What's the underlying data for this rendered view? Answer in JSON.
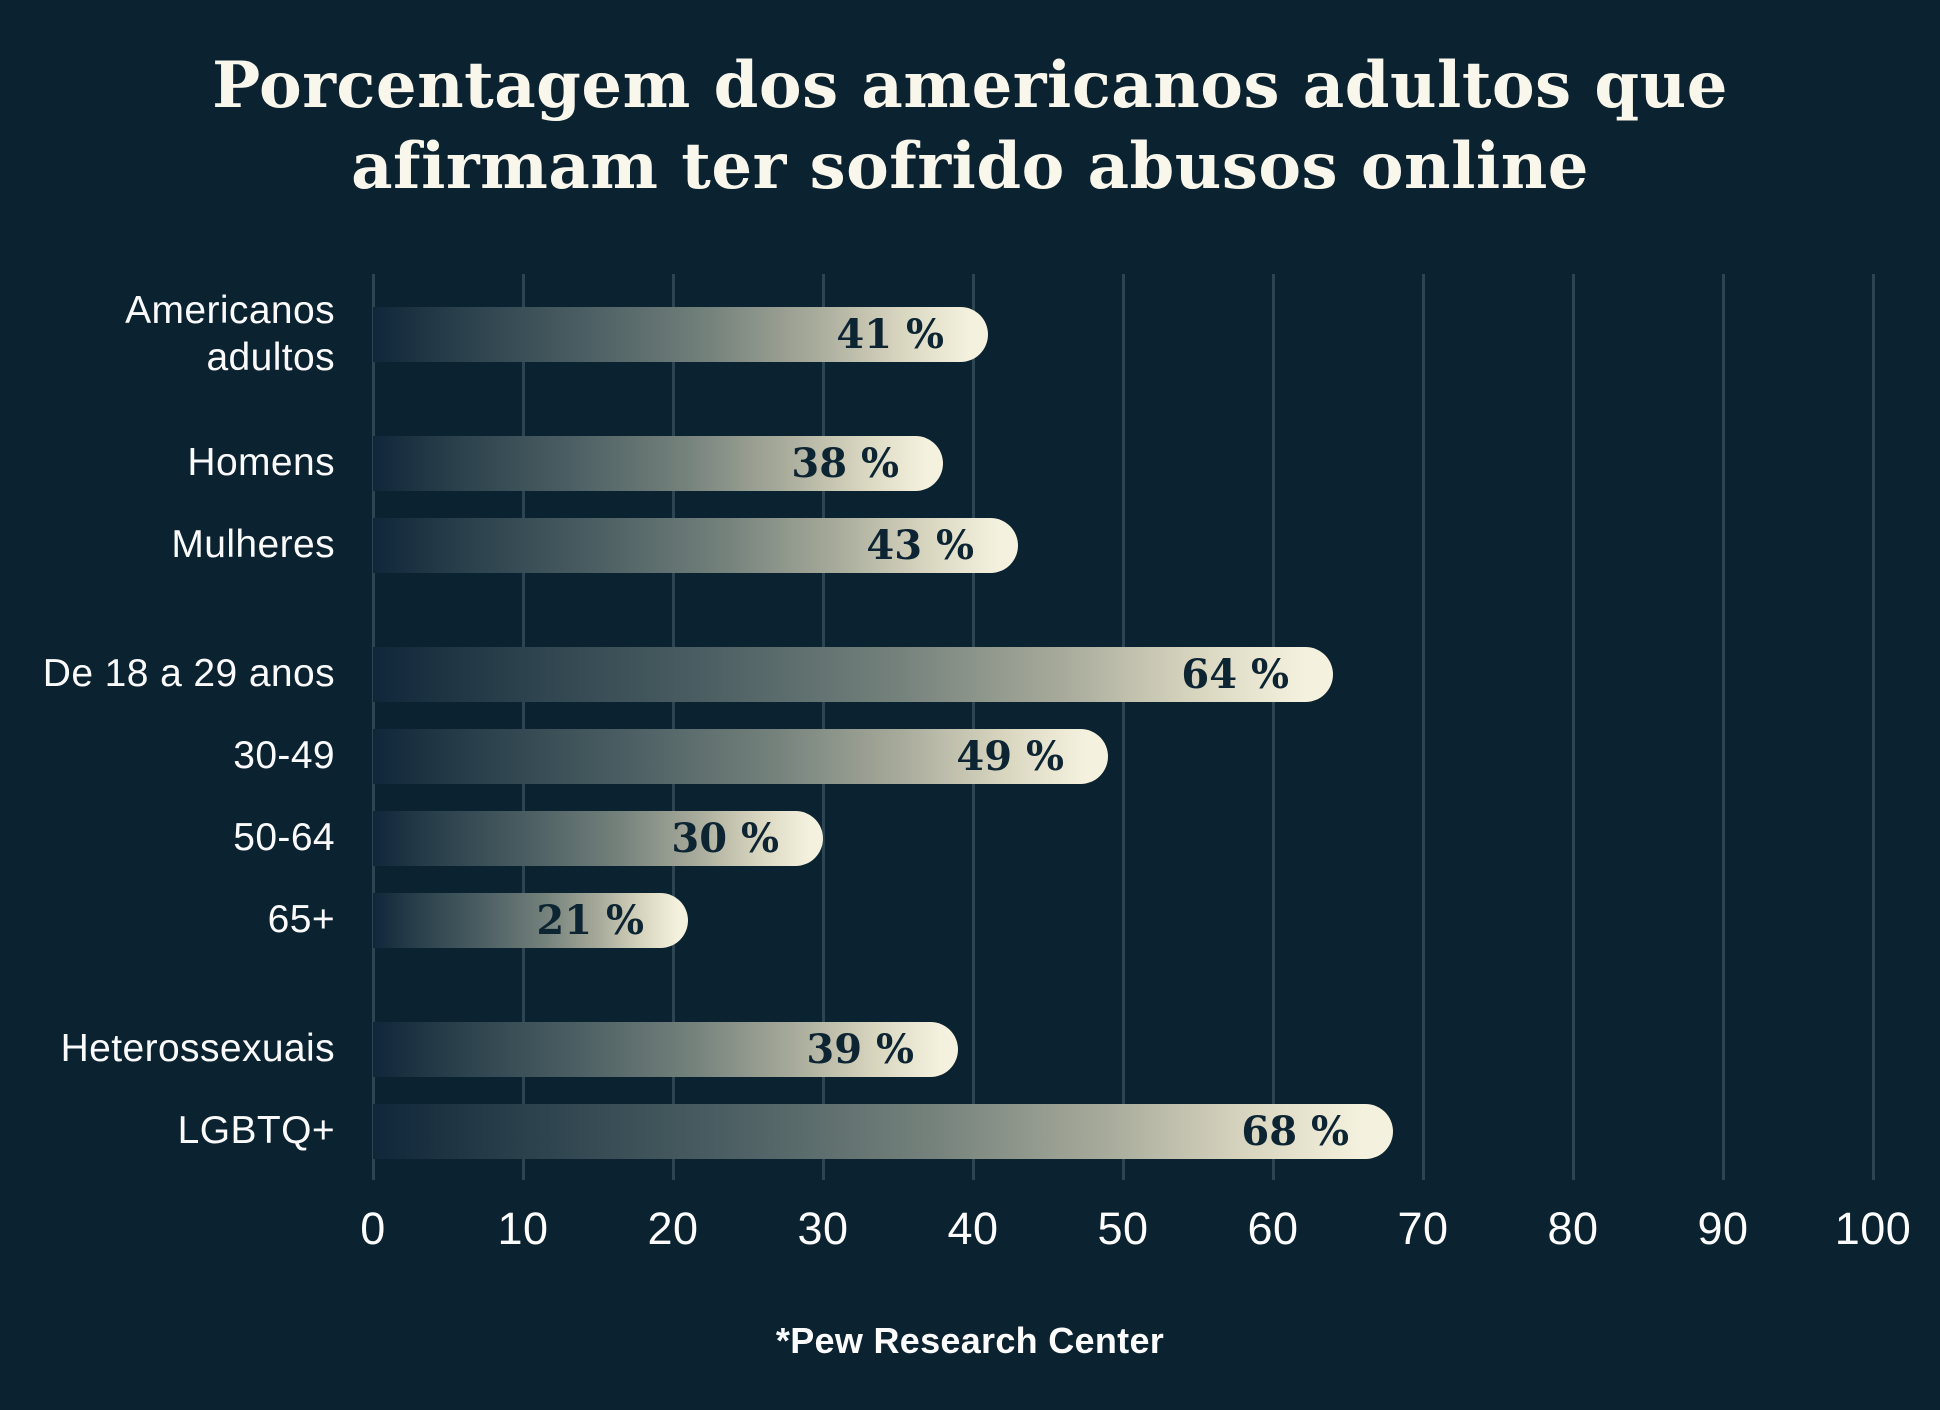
{
  "title": {
    "line1": "Porcentagem dos americanos adultos que",
    "line2": "afirmam ter sofrido abusos online"
  },
  "footer": {
    "source": "*Pew Research Center"
  },
  "colors": {
    "background": "#0b2231",
    "gridline": "#2d4553",
    "bar_gradient_start": "#10273a",
    "bar_gradient_end": "#f4f1de",
    "title_text": "#f9f6eb",
    "category_label_text": "#fafafa",
    "value_label_text": "#0d2433"
  },
  "chart_data": {
    "type": "bar",
    "orientation": "horizontal",
    "title": "Porcentagem dos americanos adultos que afirmam ter sofrido abusos online",
    "source": "*Pew Research Center",
    "categories": [
      "Americanos adultos",
      "Homens",
      "Mulheres",
      "De 18 a 29 anos",
      "30-49",
      "50-64",
      "65+",
      "Heterossexuais",
      "LGBTQ+"
    ],
    "values": [
      41,
      38,
      43,
      64,
      49,
      30,
      21,
      39,
      68
    ],
    "value_labels": [
      "41 %",
      "38 %",
      "43 %",
      "64 %",
      "49 %",
      "30 %",
      "21 %",
      "39 %",
      "68 %"
    ],
    "groups": [
      [
        "Americanos adultos"
      ],
      [
        "Homens",
        "Mulheres"
      ],
      [
        "De 18 a 29 anos",
        "30-49",
        "50-64",
        "65+"
      ],
      [
        "Heterossexuais",
        "LGBTQ+"
      ]
    ],
    "xlabel": "",
    "ylabel": "",
    "xlim": [
      0,
      100
    ],
    "x_ticks": [
      0,
      10,
      20,
      30,
      40,
      50,
      60,
      70,
      80,
      90,
      100
    ],
    "grid": "vertical",
    "legend": "none"
  }
}
